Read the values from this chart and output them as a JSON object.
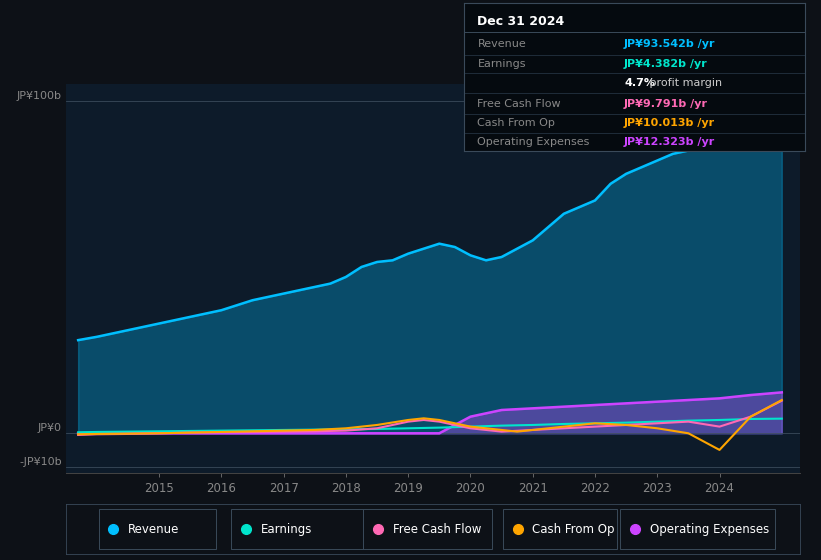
{
  "bg_color": "#0d1117",
  "chart_bg": "#0d1b2a",
  "info_box": {
    "title": "Dec 31 2024",
    "rows": [
      {
        "label": "Revenue",
        "value": "JP¥93.542b /yr",
        "color": "#00bfff"
      },
      {
        "label": "Earnings",
        "value": "JP¥4.382b /yr",
        "color": "#00e5cc"
      },
      {
        "label": "",
        "value": "4.7% profit margin",
        "color": "#cccccc",
        "bold_prefix": "4.7%"
      },
      {
        "label": "Free Cash Flow",
        "value": "JP¥9.791b /yr",
        "color": "#ff69b4"
      },
      {
        "label": "Cash From Op",
        "value": "JP¥10.013b /yr",
        "color": "#ffa500"
      },
      {
        "label": "Operating Expenses",
        "value": "JP¥12.323b /yr",
        "color": "#cc44ff"
      }
    ]
  },
  "legend": [
    {
      "label": "Revenue",
      "color": "#00bfff"
    },
    {
      "label": "Earnings",
      "color": "#00e5cc"
    },
    {
      "label": "Free Cash Flow",
      "color": "#ff69b4"
    },
    {
      "label": "Cash From Op",
      "color": "#ffa500"
    },
    {
      "label": "Operating Expenses",
      "color": "#cc44ff"
    }
  ],
  "x_ticks": [
    2015,
    2016,
    2017,
    2018,
    2019,
    2020,
    2021,
    2022,
    2023,
    2024
  ],
  "xlim": [
    2013.5,
    2025.3
  ],
  "ylim": [
    -12,
    105
  ],
  "y_labels": [
    {
      "value": 100,
      "label": "JP¥100b"
    },
    {
      "value": 0,
      "label": "JP¥0"
    },
    {
      "value": -10,
      "label": "-JP¥10b"
    }
  ],
  "revenue": {
    "x": [
      2013.7,
      2014.0,
      2014.25,
      2014.5,
      2014.75,
      2015.0,
      2015.25,
      2015.5,
      2015.75,
      2016.0,
      2016.25,
      2016.5,
      2016.75,
      2017.0,
      2017.25,
      2017.5,
      2017.75,
      2018.0,
      2018.25,
      2018.5,
      2018.75,
      2019.0,
      2019.25,
      2019.5,
      2019.75,
      2020.0,
      2020.25,
      2020.5,
      2020.75,
      2021.0,
      2021.25,
      2021.5,
      2021.75,
      2022.0,
      2022.25,
      2022.5,
      2022.75,
      2023.0,
      2023.25,
      2023.5,
      2023.75,
      2024.0,
      2024.25,
      2024.5,
      2024.75,
      2025.0
    ],
    "y": [
      28.0,
      29.0,
      30.0,
      31.0,
      32.0,
      33.0,
      34.0,
      35.0,
      36.0,
      37.0,
      38.5,
      40.0,
      41.0,
      42.0,
      43.0,
      44.0,
      45.0,
      47.0,
      50.0,
      51.5,
      52.0,
      54.0,
      55.5,
      57.0,
      56.0,
      53.5,
      52.0,
      53.0,
      55.5,
      58.0,
      62.0,
      66.0,
      68.0,
      70.0,
      75.0,
      78.0,
      80.0,
      82.0,
      84.0,
      85.0,
      86.0,
      87.0,
      88.0,
      90.0,
      93.5,
      93.5
    ],
    "color": "#00bfff",
    "fill_alpha": 0.3
  },
  "earnings": {
    "x": [
      2013.7,
      2014.0,
      2014.5,
      2015.0,
      2015.5,
      2016.0,
      2016.5,
      2017.0,
      2017.5,
      2018.0,
      2018.5,
      2019.0,
      2019.5,
      2020.0,
      2020.5,
      2021.0,
      2021.5,
      2022.0,
      2022.5,
      2023.0,
      2023.5,
      2024.0,
      2024.5,
      2025.0
    ],
    "y": [
      0.3,
      0.4,
      0.5,
      0.6,
      0.7,
      0.8,
      0.9,
      1.0,
      1.1,
      1.2,
      1.3,
      1.5,
      1.7,
      2.0,
      2.3,
      2.5,
      2.8,
      3.0,
      3.2,
      3.5,
      3.8,
      4.0,
      4.3,
      4.4
    ],
    "color": "#00e5cc"
  },
  "free_cash_flow": {
    "x": [
      2013.7,
      2014.0,
      2014.5,
      2015.0,
      2015.5,
      2016.0,
      2016.5,
      2017.0,
      2017.5,
      2018.0,
      2018.5,
      2019.0,
      2019.25,
      2019.5,
      2019.75,
      2020.0,
      2020.5,
      2021.0,
      2021.5,
      2022.0,
      2022.5,
      2023.0,
      2023.5,
      2024.0,
      2024.5,
      2025.0
    ],
    "y": [
      -0.5,
      -0.3,
      -0.2,
      0.0,
      0.2,
      0.3,
      0.4,
      0.5,
      0.6,
      0.8,
      1.5,
      3.5,
      4.0,
      3.5,
      2.5,
      1.5,
      0.5,
      1.0,
      1.5,
      2.0,
      2.5,
      3.0,
      3.5,
      2.0,
      5.0,
      9.8
    ],
    "color": "#ff69b4"
  },
  "cash_from_op": {
    "x": [
      2013.7,
      2014.0,
      2014.5,
      2015.0,
      2015.5,
      2016.0,
      2016.5,
      2017.0,
      2017.5,
      2018.0,
      2018.5,
      2019.0,
      2019.25,
      2019.5,
      2019.75,
      2020.0,
      2020.25,
      2020.5,
      2020.75,
      2021.0,
      2021.5,
      2022.0,
      2022.5,
      2023.0,
      2023.5,
      2024.0,
      2024.5,
      2025.0
    ],
    "y": [
      -0.3,
      -0.2,
      -0.1,
      0.0,
      0.2,
      0.4,
      0.6,
      0.8,
      1.0,
      1.5,
      2.5,
      4.0,
      4.5,
      4.0,
      3.0,
      2.0,
      1.5,
      1.0,
      0.5,
      1.0,
      2.0,
      3.0,
      2.5,
      1.5,
      0.0,
      -5.0,
      5.0,
      10.0
    ],
    "color": "#ffa500"
  },
  "operating_expenses": {
    "x": [
      2013.7,
      2014.0,
      2015.0,
      2016.0,
      2017.0,
      2018.0,
      2019.0,
      2019.5,
      2020.0,
      2020.25,
      2020.5,
      2021.0,
      2021.5,
      2022.0,
      2022.5,
      2023.0,
      2023.5,
      2024.0,
      2024.5,
      2025.0
    ],
    "y": [
      0.0,
      0.0,
      0.0,
      0.0,
      0.0,
      0.0,
      0.0,
      0.0,
      5.0,
      6.0,
      7.0,
      7.5,
      8.0,
      8.5,
      9.0,
      9.5,
      10.0,
      10.5,
      11.5,
      12.3
    ],
    "color": "#cc44ff"
  }
}
